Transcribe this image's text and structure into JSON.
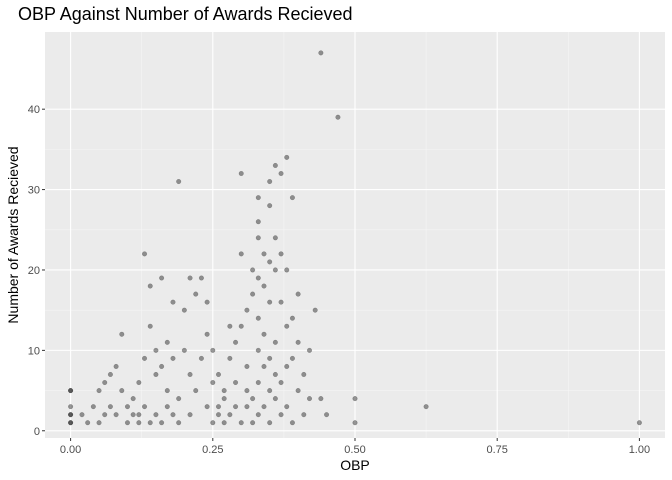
{
  "chart_data": {
    "type": "scatter",
    "title": "OBP Against Number of Awards Recieved",
    "xlabel": "OBP",
    "ylabel": "Number of Awards Recieved",
    "xlim": [
      -0.045,
      1.045
    ],
    "ylim": [
      -0.9,
      49.6
    ],
    "x_ticks": [
      0.0,
      0.25,
      0.5,
      0.75,
      1.0
    ],
    "x_tick_labels": [
      "0.00",
      "0.25",
      "0.50",
      "0.75",
      "1.00"
    ],
    "y_ticks": [
      0,
      10,
      20,
      30,
      40
    ],
    "y_tick_labels": [
      "0",
      "10",
      "20",
      "30",
      "40"
    ],
    "grid": true,
    "point_color": "#000000",
    "point_opacity": 0.4,
    "panel_background": "#ebebeb",
    "points": [
      [
        0.0,
        1
      ],
      [
        0.0,
        1
      ],
      [
        0.0,
        2
      ],
      [
        0.0,
        2
      ],
      [
        0.0,
        3
      ],
      [
        0.0,
        5
      ],
      [
        0.0,
        5
      ],
      [
        0.02,
        2
      ],
      [
        0.03,
        1
      ],
      [
        0.04,
        3
      ],
      [
        0.05,
        1
      ],
      [
        0.05,
        5
      ],
      [
        0.06,
        2
      ],
      [
        0.06,
        6
      ],
      [
        0.07,
        3
      ],
      [
        0.07,
        7
      ],
      [
        0.08,
        2
      ],
      [
        0.08,
        8
      ],
      [
        0.09,
        5
      ],
      [
        0.09,
        12
      ],
      [
        0.1,
        1
      ],
      [
        0.1,
        3
      ],
      [
        0.11,
        2
      ],
      [
        0.11,
        4
      ],
      [
        0.12,
        1
      ],
      [
        0.12,
        2
      ],
      [
        0.12,
        6
      ],
      [
        0.13,
        3
      ],
      [
        0.13,
        9
      ],
      [
        0.13,
        22
      ],
      [
        0.14,
        18
      ],
      [
        0.14,
        13
      ],
      [
        0.14,
        1
      ],
      [
        0.15,
        2
      ],
      [
        0.15,
        7
      ],
      [
        0.15,
        10
      ],
      [
        0.16,
        1
      ],
      [
        0.16,
        19
      ],
      [
        0.16,
        8
      ],
      [
        0.17,
        3
      ],
      [
        0.17,
        5
      ],
      [
        0.17,
        11
      ],
      [
        0.18,
        16
      ],
      [
        0.18,
        2
      ],
      [
        0.18,
        9
      ],
      [
        0.19,
        31
      ],
      [
        0.19,
        4
      ],
      [
        0.19,
        1
      ],
      [
        0.2,
        15
      ],
      [
        0.2,
        10
      ],
      [
        0.21,
        19
      ],
      [
        0.21,
        7
      ],
      [
        0.21,
        2
      ],
      [
        0.22,
        17
      ],
      [
        0.22,
        5
      ],
      [
        0.23,
        9
      ],
      [
        0.23,
        19
      ],
      [
        0.24,
        16
      ],
      [
        0.24,
        12
      ],
      [
        0.24,
        3
      ],
      [
        0.25,
        10
      ],
      [
        0.25,
        6
      ],
      [
        0.25,
        1
      ],
      [
        0.26,
        3
      ],
      [
        0.26,
        2
      ],
      [
        0.26,
        7
      ],
      [
        0.27,
        1
      ],
      [
        0.27,
        4
      ],
      [
        0.27,
        5
      ],
      [
        0.28,
        13
      ],
      [
        0.28,
        9
      ],
      [
        0.28,
        2
      ],
      [
        0.29,
        11
      ],
      [
        0.29,
        3
      ],
      [
        0.29,
        6
      ],
      [
        0.3,
        32
      ],
      [
        0.3,
        22
      ],
      [
        0.3,
        13
      ],
      [
        0.3,
        1
      ],
      [
        0.31,
        8
      ],
      [
        0.31,
        15
      ],
      [
        0.31,
        5
      ],
      [
        0.31,
        3
      ],
      [
        0.32,
        20
      ],
      [
        0.32,
        17
      ],
      [
        0.32,
        4
      ],
      [
        0.32,
        1
      ],
      [
        0.33,
        29
      ],
      [
        0.33,
        26
      ],
      [
        0.33,
        24
      ],
      [
        0.33,
        19
      ],
      [
        0.33,
        14
      ],
      [
        0.33,
        10
      ],
      [
        0.33,
        6
      ],
      [
        0.33,
        2
      ],
      [
        0.34,
        22
      ],
      [
        0.34,
        18
      ],
      [
        0.34,
        12
      ],
      [
        0.34,
        8
      ],
      [
        0.34,
        3
      ],
      [
        0.35,
        31
      ],
      [
        0.35,
        28
      ],
      [
        0.35,
        21
      ],
      [
        0.35,
        16
      ],
      [
        0.35,
        9
      ],
      [
        0.35,
        5
      ],
      [
        0.35,
        1
      ],
      [
        0.36,
        33
      ],
      [
        0.36,
        24
      ],
      [
        0.36,
        20
      ],
      [
        0.36,
        11
      ],
      [
        0.36,
        7
      ],
      [
        0.36,
        4
      ],
      [
        0.37,
        32
      ],
      [
        0.37,
        22
      ],
      [
        0.37,
        16
      ],
      [
        0.37,
        6
      ],
      [
        0.37,
        2
      ],
      [
        0.38,
        34
      ],
      [
        0.38,
        20
      ],
      [
        0.38,
        13
      ],
      [
        0.38,
        8
      ],
      [
        0.38,
        3
      ],
      [
        0.39,
        29
      ],
      [
        0.39,
        14
      ],
      [
        0.39,
        9
      ],
      [
        0.39,
        1
      ],
      [
        0.4,
        17
      ],
      [
        0.4,
        11
      ],
      [
        0.4,
        5
      ],
      [
        0.41,
        7
      ],
      [
        0.41,
        2
      ],
      [
        0.42,
        10
      ],
      [
        0.42,
        4
      ],
      [
        0.43,
        15
      ],
      [
        0.44,
        47
      ],
      [
        0.44,
        4
      ],
      [
        0.45,
        2
      ],
      [
        0.47,
        39
      ],
      [
        0.5,
        4
      ],
      [
        0.5,
        1
      ],
      [
        0.625,
        3
      ],
      [
        1.0,
        1
      ]
    ]
  }
}
